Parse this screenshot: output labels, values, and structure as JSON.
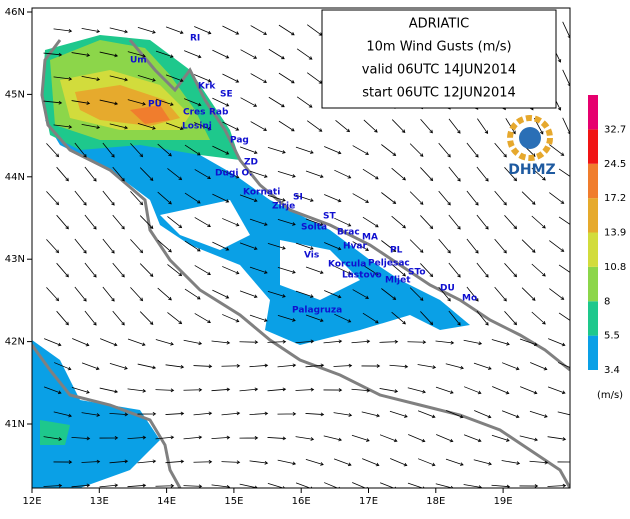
{
  "title_box": {
    "lines": [
      "ADRIATIC",
      "10m Wind Gusts (m/s)",
      "valid 06UTC 14JUN2014",
      "start 06UTC 12JUN2014"
    ]
  },
  "axes": {
    "lon_labels": [
      "12E",
      "13E",
      "14E",
      "15E",
      "16E",
      "17E",
      "18E",
      "19E"
    ],
    "lat_labels": [
      "46N",
      "45N",
      "44N",
      "43N",
      "42N",
      "41N"
    ]
  },
  "colorbar": {
    "levels": [
      3.4,
      5.5,
      8,
      10.8,
      13.9,
      17.2,
      24.5,
      32.7
    ],
    "colors": [
      "#0aa0e6",
      "#1ec88c",
      "#8cd64a",
      "#d2dc3c",
      "#e6aa2d",
      "#f07d2d",
      "#f01414",
      "#e6006e"
    ],
    "unit": "(m/s)"
  },
  "logo": "DHMZ",
  "places": [
    "Um",
    "RI",
    "Krk",
    "SE",
    "PU",
    "Cres",
    "Rab",
    "Losinj",
    "Pag",
    "ZD",
    "Dugi O.",
    "Kornati",
    "SI",
    "Zirje",
    "ST",
    "Solta",
    "Brac",
    "MA",
    "Hvar",
    "PL",
    "Vis",
    "Korcula",
    "Peljesac",
    "Lastovo",
    "Mljet",
    "STo",
    "DU",
    "Mo",
    "Palagruza"
  ]
}
